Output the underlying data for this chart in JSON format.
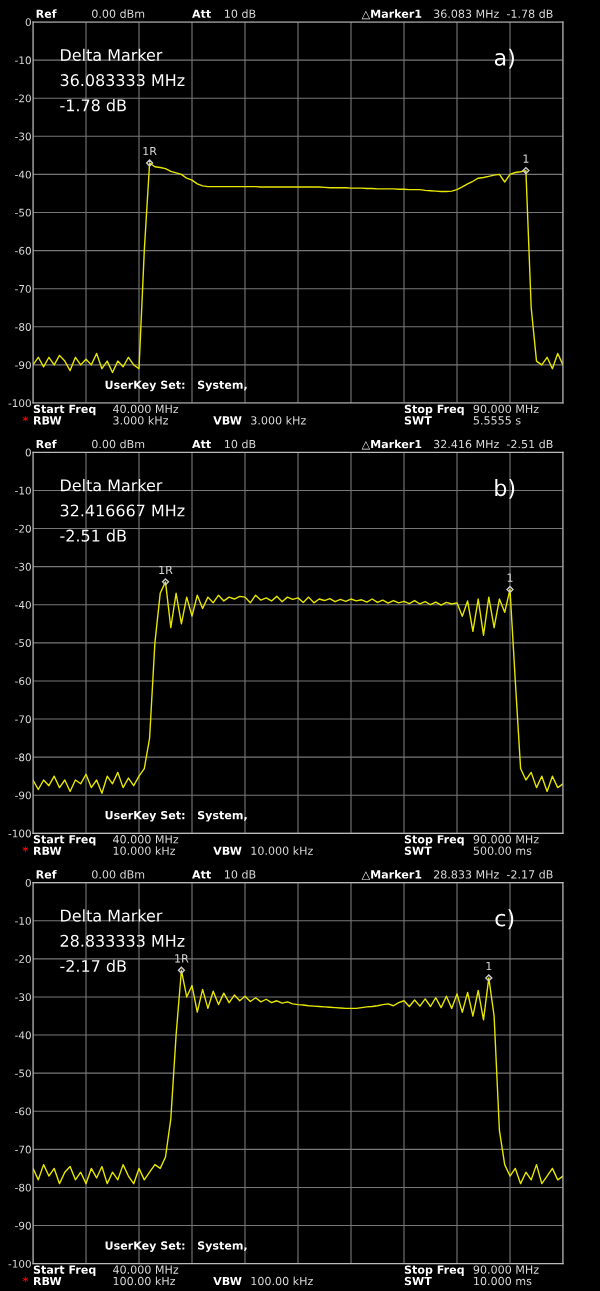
{
  "chart_data": [
    {
      "type": "line",
      "ylim": [
        -100,
        0
      ],
      "categories": [
        null,
        null,
        null,
        null,
        null,
        null,
        null,
        null,
        null,
        null,
        null,
        null,
        null,
        null,
        null,
        null,
        null,
        null,
        null,
        null,
        null,
        null,
        null,
        null,
        null,
        null,
        null,
        null,
        null,
        null,
        null,
        null,
        null,
        null,
        null,
        null,
        null,
        null,
        null,
        null,
        null,
        null,
        null,
        null,
        null,
        null,
        null,
        null,
        null,
        null,
        null,
        null,
        null,
        null,
        null,
        null,
        null,
        null,
        null,
        null,
        null,
        null,
        null,
        null,
        null,
        null,
        null,
        null,
        null,
        null,
        null,
        null,
        null,
        null,
        null,
        null,
        null,
        null,
        null,
        null,
        null,
        null,
        null,
        null,
        null,
        null,
        null,
        null,
        null,
        null,
        null,
        null,
        null,
        null,
        null,
        null,
        null,
        null,
        null,
        null,
        null
      ],
      "yticks": [
        0,
        -10,
        -20,
        -30,
        -40,
        -50,
        -60,
        -70,
        -80,
        -90,
        -100
      ],
      "tick_labels": "y",
      "grid": true,
      "marker": "none",
      "line_style": "solid",
      "series": [
        {
          "color": "#e6e600",
          "values": [
            -90,
            -88,
            -90.5,
            -88,
            -90,
            -87.5,
            -89,
            -91.5,
            -88,
            -90,
            -88.5,
            -90,
            -87,
            -91,
            -89,
            -92,
            -89,
            -90.5,
            -88,
            -90,
            -91,
            -60,
            -37,
            -38,
            -38.2,
            -38.5,
            -39.2,
            -39.6,
            -40,
            -41,
            -41.5,
            -42.5,
            -43,
            -43.2,
            -43.2,
            -43.2,
            -43.2,
            -43.2,
            -43.2,
            -43.2,
            -43.2,
            -43.2,
            -43.2,
            -43.3,
            -43.3,
            -43.3,
            -43.3,
            -43.3,
            -43.3,
            -43.3,
            -43.3,
            -43.3,
            -43.3,
            -43.3,
            -43.3,
            -43.4,
            -43.5,
            -43.5,
            -43.5,
            -43.5,
            -43.6,
            -43.6,
            -43.6,
            -43.7,
            -43.7,
            -43.8,
            -43.8,
            -43.8,
            -43.8,
            -43.9,
            -43.9,
            -44,
            -44,
            -44,
            -44.2,
            -44.3,
            -44.4,
            -44.5,
            -44.5,
            -44.4,
            -44,
            -43.3,
            -42.5,
            -41.8,
            -41,
            -40.8,
            -40.5,
            -40.2,
            -40,
            -42,
            -40,
            -39.5,
            -39.3,
            -39,
            -75,
            -89,
            -90,
            -88,
            -91,
            -87,
            -90
          ]
        }
      ],
      "annotations": [
        "Ref",
        "0.00 dBm",
        "Att",
        "10 dB",
        "△Marker1",
        "36.083 MHz  -1.78 dB",
        "Delta Marker\n36.083333 MHz\n-1.78 dB",
        "a)",
        "UserKey Set:   System,",
        "Start Freq",
        "40.000 MHz",
        "Stop Freq",
        "90.000 MHz",
        "*",
        "RBW",
        "3.000 kHz",
        "VBW",
        "3.000 kHz",
        "SWT",
        "5.5555 s",
        {
          "text": "1R",
          "y": -37
        },
        {
          "text": "1",
          "y": -39
        }
      ]
    },
    {
      "type": "line",
      "ylim": [
        -100,
        0
      ],
      "categories": [
        null,
        null,
        null,
        null,
        null,
        null,
        null,
        null,
        null,
        null,
        null,
        null,
        null,
        null,
        null,
        null,
        null,
        null,
        null,
        null,
        null,
        null,
        null,
        null,
        null,
        null,
        null,
        null,
        null,
        null,
        null,
        null,
        null,
        null,
        null,
        null,
        null,
        null,
        null,
        null,
        null,
        null,
        null,
        null,
        null,
        null,
        null,
        null,
        null,
        null,
        null,
        null,
        null,
        null,
        null,
        null,
        null,
        null,
        null,
        null,
        null,
        null,
        null,
        null,
        null,
        null,
        null,
        null,
        null,
        null,
        null,
        null,
        null,
        null,
        null,
        null,
        null,
        null,
        null,
        null,
        null,
        null,
        null,
        null,
        null,
        null,
        null,
        null,
        null,
        null,
        null,
        null,
        null,
        null,
        null,
        null,
        null,
        null,
        null,
        null,
        null
      ],
      "yticks": [
        0,
        -10,
        -20,
        -30,
        -40,
        -50,
        -60,
        -70,
        -80,
        -90,
        -100
      ],
      "tick_labels": "y",
      "grid": true,
      "marker": "none",
      "line_style": "solid",
      "series": [
        {
          "color": "#e6e600",
          "values": [
            -86,
            -88.5,
            -86,
            -87.5,
            -85,
            -88,
            -86,
            -89,
            -86,
            -87,
            -84.5,
            -88,
            -86,
            -89.5,
            -85,
            -87,
            -84,
            -88,
            -85.5,
            -87.5,
            -85,
            -83,
            -75,
            -50,
            -37,
            -34,
            -46,
            -37,
            -45,
            -38,
            -43,
            -37.5,
            -41,
            -38,
            -39.5,
            -37.5,
            -39,
            -38,
            -38.5,
            -37.8,
            -38,
            -39.5,
            -37.5,
            -38.8,
            -38.2,
            -39,
            -37.8,
            -39.2,
            -38,
            -38.6,
            -38.2,
            -39.4,
            -38,
            -39.5,
            -38.5,
            -38.9,
            -38.4,
            -39.2,
            -38.6,
            -39.1,
            -38.5,
            -39,
            -38.7,
            -39.3,
            -38.5,
            -39.4,
            -38.8,
            -39.6,
            -38.9,
            -39.5,
            -39.1,
            -39.7,
            -38.9,
            -39.8,
            -39.2,
            -40,
            -39.3,
            -40.1,
            -39.4,
            -39.8,
            -39.5,
            -43,
            -39,
            -47,
            -38.5,
            -48,
            -38,
            -46,
            -38.5,
            -42,
            -36,
            -60,
            -83,
            -86,
            -84,
            -88,
            -85,
            -89,
            -85,
            -88,
            -87
          ]
        }
      ],
      "annotations": [
        "Ref",
        "0.00 dBm",
        "Att",
        "10 dB",
        "△Marker1",
        "32.416 MHz  -2.51 dB",
        "Delta Marker\n32.416667 MHz\n-2.51 dB",
        "b)",
        "UserKey Set:   System,",
        "Start Freq",
        "40.000 MHz",
        "Stop Freq",
        "90.000 MHz",
        "*",
        "RBW",
        "10.000 kHz",
        "VBW",
        "10.000 kHz",
        "SWT",
        "500.00 ms",
        {
          "text": "1R",
          "y": -34
        },
        {
          "text": "1",
          "y": -36
        }
      ]
    },
    {
      "type": "line",
      "ylim": [
        -100,
        0
      ],
      "categories": [
        null,
        null,
        null,
        null,
        null,
        null,
        null,
        null,
        null,
        null,
        null,
        null,
        null,
        null,
        null,
        null,
        null,
        null,
        null,
        null,
        null,
        null,
        null,
        null,
        null,
        null,
        null,
        null,
        null,
        null,
        null,
        null,
        null,
        null,
        null,
        null,
        null,
        null,
        null,
        null,
        null,
        null,
        null,
        null,
        null,
        null,
        null,
        null,
        null,
        null,
        null,
        null,
        null,
        null,
        null,
        null,
        null,
        null,
        null,
        null,
        null,
        null,
        null,
        null,
        null,
        null,
        null,
        null,
        null,
        null,
        null,
        null,
        null,
        null,
        null,
        null,
        null,
        null,
        null,
        null,
        null,
        null,
        null,
        null,
        null,
        null,
        null,
        null,
        null,
        null,
        null,
        null,
        null,
        null,
        null,
        null,
        null,
        null,
        null,
        null,
        null
      ],
      "yticks": [
        0,
        -10,
        -20,
        -30,
        -40,
        -50,
        -60,
        -70,
        -80,
        -90,
        -100
      ],
      "tick_labels": "y",
      "grid": true,
      "marker": "none",
      "line_style": "solid",
      "series": [
        {
          "color": "#e6e600",
          "values": [
            -75,
            -78,
            -74,
            -77,
            -75,
            -79,
            -76,
            -74.5,
            -78,
            -76,
            -79,
            -75,
            -77.5,
            -74.5,
            -79,
            -76,
            -78,
            -74,
            -77,
            -79,
            -75,
            -78,
            -76,
            -74,
            -75,
            -72,
            -62,
            -40,
            -23,
            -30,
            -27,
            -34,
            -28,
            -33,
            -28.5,
            -32,
            -29,
            -31.5,
            -29.5,
            -31,
            -29.8,
            -31.2,
            -30.2,
            -31.3,
            -30.6,
            -31.5,
            -31,
            -31.6,
            -31.3,
            -31.8,
            -32,
            -32.1,
            -32.3,
            -32.4,
            -32.5,
            -32.6,
            -32.7,
            -32.8,
            -32.9,
            -33,
            -33,
            -33,
            -32.8,
            -32.6,
            -32.5,
            -32.3,
            -32,
            -31.8,
            -32.3,
            -31.5,
            -31,
            -32.5,
            -30.8,
            -32.4,
            -30.5,
            -32.5,
            -30.2,
            -32.8,
            -29.8,
            -33,
            -29.2,
            -34,
            -28.8,
            -35,
            -28.3,
            -36,
            -25,
            -35,
            -65,
            -74,
            -77,
            -75,
            -79,
            -76,
            -78,
            -74,
            -79,
            -77,
            -75,
            -78,
            -77
          ]
        }
      ],
      "annotations": [
        "Ref",
        "0.00 dBm",
        "Att",
        "10 dB",
        "△Marker1",
        "28.833 MHz  -2.17 dB",
        "Delta Marker\n28.833333 MHz\n-2.17 dB",
        "c)",
        "UserKey Set:   System,",
        "Start Freq",
        "40.000 MHz",
        "Stop Freq",
        "90.000 MHz",
        "*",
        "RBW",
        "100.00 kHz",
        "VBW",
        "100.00 kHz",
        "SWT",
        "10.000 ms",
        {
          "text": "1R",
          "y": -23
        },
        {
          "text": "1",
          "y": -25
        }
      ]
    }
  ]
}
